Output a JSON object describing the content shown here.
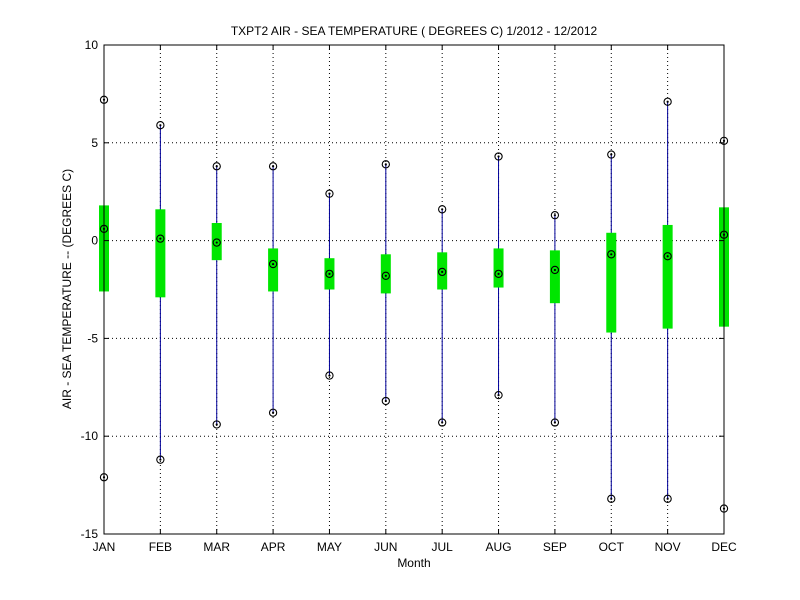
{
  "chart_data": {
    "type": "box",
    "title": "TXPT2  AIR - SEA TEMPERATURE ( DEGREES C) 1/2012 - 12/2012",
    "xlabel": "Month",
    "ylabel": "AIR - SEA TEMPERATURE -- (DEGREES C)",
    "categories": [
      "JAN",
      "FEB",
      "MAR",
      "APR",
      "MAY",
      "JUN",
      "JUL",
      "AUG",
      "SEP",
      "OCT",
      "NOV",
      "DEC"
    ],
    "ylim": [
      -15,
      10
    ],
    "yticks": [
      -15,
      -10,
      -5,
      0,
      5,
      10
    ],
    "ytick_labels": [
      "-15",
      "-10",
      "-5",
      "0",
      "5",
      "10"
    ],
    "grid": true,
    "grid_style": "dotted",
    "series": [
      {
        "field": "max",
        "values": [
          7.2,
          5.9,
          3.8,
          3.8,
          2.4,
          3.9,
          1.6,
          4.3,
          1.3,
          4.4,
          7.1,
          5.1
        ]
      },
      {
        "field": "q3",
        "values": [
          1.8,
          1.6,
          0.9,
          -0.4,
          -0.9,
          -0.7,
          -0.6,
          -0.4,
          -0.5,
          0.4,
          0.8,
          1.7
        ]
      },
      {
        "field": "median",
        "values": [
          0.6,
          0.1,
          -0.1,
          -1.2,
          -1.7,
          -1.8,
          -1.6,
          -1.7,
          -1.5,
          -0.7,
          -0.8,
          0.3
        ]
      },
      {
        "field": "q1",
        "values": [
          -2.6,
          -2.9,
          -1.0,
          -2.6,
          -2.5,
          -2.7,
          -2.5,
          -2.4,
          -3.2,
          -4.7,
          -4.5,
          -4.4
        ]
      },
      {
        "field": "min",
        "values": [
          -12.1,
          -11.2,
          -9.4,
          -8.8,
          -6.9,
          -8.2,
          -9.3,
          -7.9,
          -9.3,
          -13.2,
          -13.2,
          -13.7
        ]
      }
    ],
    "colors": {
      "whisker": "#000099",
      "box": "#00e600",
      "marker": "#000000",
      "grid": "#000000"
    }
  }
}
